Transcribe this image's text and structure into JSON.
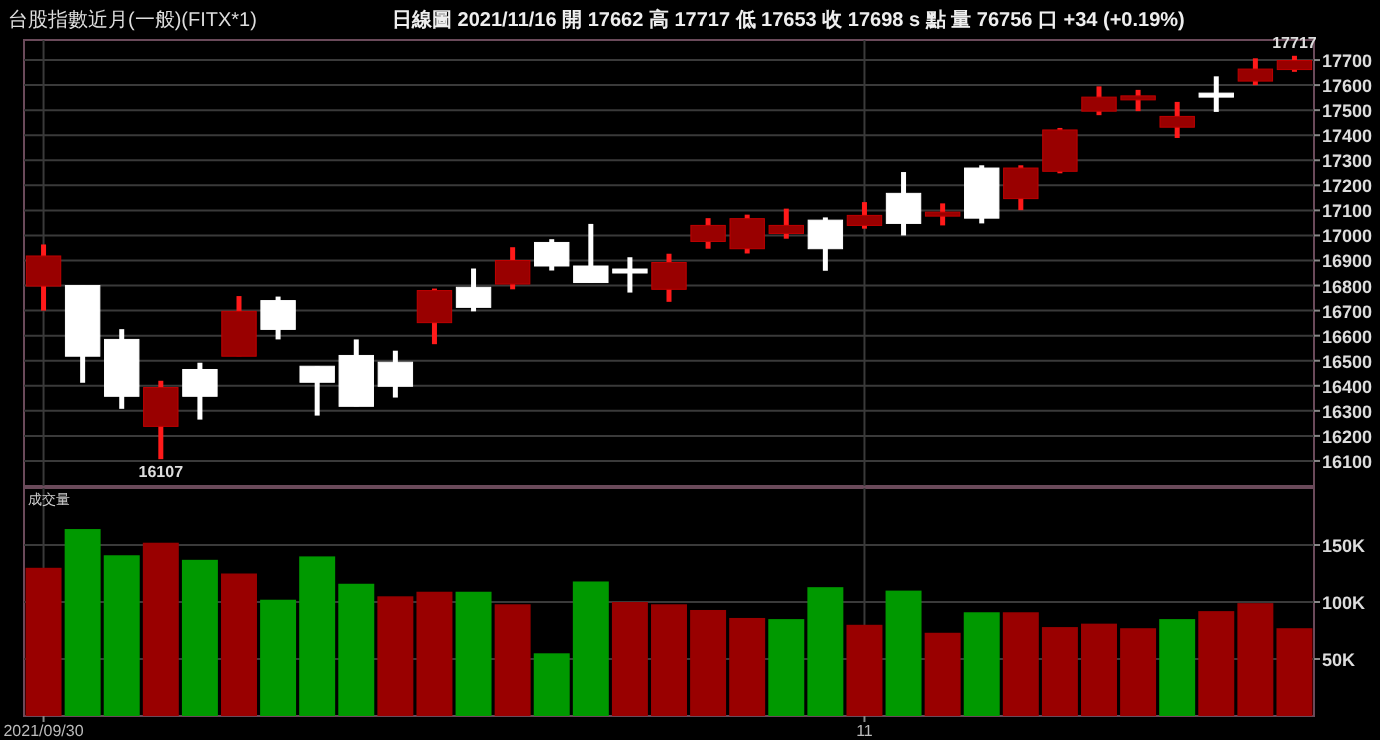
{
  "chart_data": [
    {
      "type": "candlestick",
      "title": "台股指數近月(一般)(FITX*1)",
      "subtitle": "日線圖   2021/11/16  開 17662  高 17717  低 17653  收 17698  s 點  量 76756 口  +34 (+0.19%)",
      "categories": [
        "2021/09/30",
        null,
        null,
        null,
        null,
        null,
        null,
        null,
        null,
        null,
        null,
        null,
        null,
        null,
        null,
        null,
        null,
        null,
        null,
        null,
        null,
        "11",
        null,
        null,
        null,
        null,
        null,
        null,
        null,
        null,
        null,
        null,
        null
      ],
      "ohlc": [
        [
          16798,
          16964,
          16700,
          16918
        ],
        [
          16800,
          16800,
          16412,
          16518
        ],
        [
          16585,
          16626,
          16308,
          16358
        ],
        [
          16238,
          16420,
          16107,
          16393
        ],
        [
          16465,
          16492,
          16265,
          16358
        ],
        [
          16518,
          16758,
          16518,
          16697
        ],
        [
          16740,
          16756,
          16585,
          16625
        ],
        [
          16478,
          16478,
          16281,
          16414
        ],
        [
          16521,
          16585,
          16318,
          16318
        ],
        [
          16494,
          16540,
          16353,
          16398
        ],
        [
          16652,
          16788,
          16566,
          16780
        ],
        [
          16793,
          16868,
          16697,
          16713
        ],
        [
          16806,
          16953,
          16785,
          16900
        ],
        [
          16972,
          16985,
          16860,
          16878
        ],
        [
          16878,
          17046,
          16812,
          16812
        ],
        [
          16866,
          16913,
          16772,
          16858
        ],
        [
          16785,
          16927,
          16735,
          16892
        ],
        [
          16976,
          17069,
          16947,
          17040
        ],
        [
          16947,
          17083,
          16928,
          17067
        ],
        [
          17008,
          17107,
          16987,
          17040
        ],
        [
          17061,
          17072,
          16859,
          16947
        ],
        [
          17040,
          17133,
          17027,
          17080
        ],
        [
          17168,
          17253,
          17000,
          17048
        ],
        [
          17080,
          17128,
          17040,
          17093
        ],
        [
          17269,
          17280,
          17048,
          17069
        ],
        [
          17147,
          17280,
          17101,
          17269
        ],
        [
          17256,
          17429,
          17248,
          17421
        ],
        [
          17496,
          17595,
          17480,
          17552
        ],
        [
          17547,
          17581,
          17496,
          17557
        ],
        [
          17432,
          17533,
          17389,
          17475
        ],
        [
          17568,
          17635,
          17493,
          17557
        ],
        [
          17616,
          17707,
          17600,
          17664
        ],
        [
          17662,
          17717,
          17653,
          17698
        ]
      ],
      "ylim": [
        16000,
        17780
      ],
      "yticks": [
        16100,
        16200,
        16300,
        16400,
        16500,
        16600,
        16700,
        16800,
        16900,
        17000,
        17100,
        17200,
        17300,
        17400,
        17500,
        17600,
        17700
      ],
      "grid": true,
      "tick_labels": "y",
      "annotations": [
        {
          "text": "16107",
          "y": 16107
        },
        {
          "text": "17717",
          "y": 17717
        }
      ]
    },
    {
      "type": "bar",
      "title": "成交量",
      "categories": [
        "2021/09/30",
        null,
        null,
        null,
        null,
        null,
        null,
        null,
        null,
        null,
        null,
        null,
        null,
        null,
        null,
        null,
        null,
        null,
        null,
        null,
        null,
        "11",
        null,
        null,
        null,
        null,
        null,
        null,
        null,
        null,
        null,
        null,
        null
      ],
      "values": [
        130000,
        164000,
        141000,
        152000,
        137000,
        125000,
        102000,
        140000,
        116000,
        105000,
        109000,
        109000,
        98000,
        55000,
        118000,
        100000,
        98000,
        93000,
        86000,
        85000,
        113000,
        80000,
        110000,
        73000,
        91000,
        91000,
        78000,
        81000,
        77000,
        85000,
        92000,
        99000,
        77000
      ],
      "colors": [
        "#990000",
        "#009900",
        "#009900",
        "#990000",
        "#009900",
        "#990000",
        "#009900",
        "#009900",
        "#009900",
        "#990000",
        "#990000",
        "#009900",
        "#990000",
        "#009900",
        "#009900",
        "#990000",
        "#990000",
        "#990000",
        "#990000",
        "#009900",
        "#009900",
        "#990000",
        "#009900",
        "#990000",
        "#009900",
        "#990000",
        "#990000",
        "#990000",
        "#990000",
        "#009900",
        "#990000",
        "#990000",
        "#990000"
      ],
      "ylim": [
        0,
        200000
      ],
      "yticks": [
        {
          "value": 50000,
          "label": "50K"
        },
        {
          "value": 100000,
          "label": "100K"
        },
        {
          "value": 150000,
          "label": "150K"
        }
      ],
      "grid": true
    }
  ]
}
